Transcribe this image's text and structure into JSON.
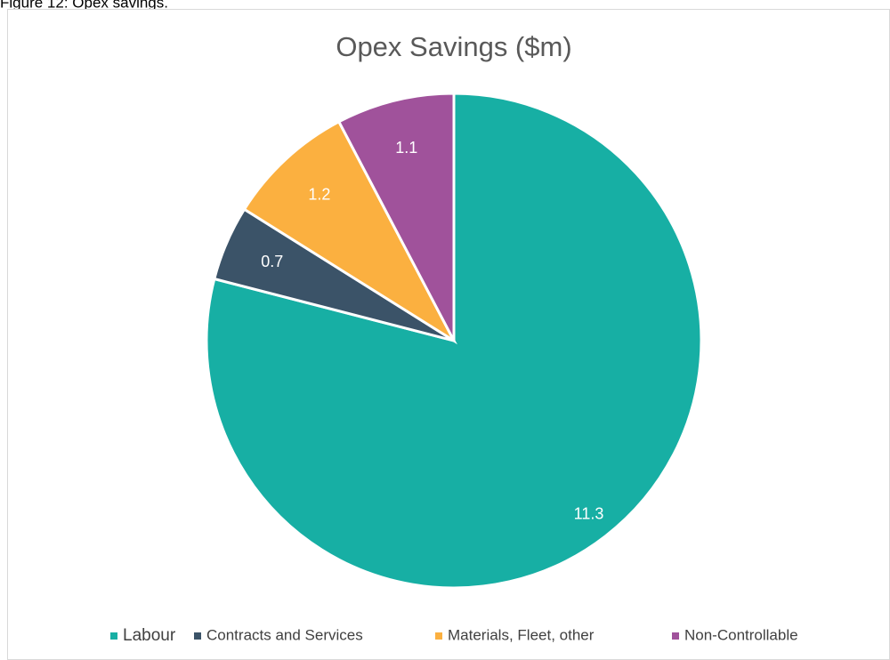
{
  "caption": "Figure 12: Opex savings.",
  "chart_data": {
    "type": "pie",
    "title": "Opex Savings ($m)",
    "categories": [
      "Labour",
      "Contracts and Services",
      "Materials, Fleet, other",
      "Non-Controllable"
    ],
    "values": [
      11.3,
      0.7,
      1.2,
      1.1
    ],
    "colors": [
      "#17afa4",
      "#3b5368",
      "#fbb040",
      "#a0529b"
    ],
    "legend": "bottom"
  }
}
